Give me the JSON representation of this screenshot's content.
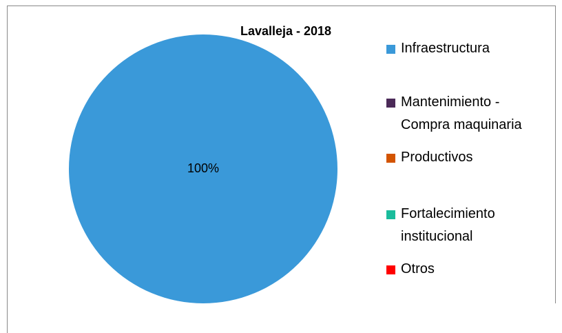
{
  "chart_data": {
    "type": "pie",
    "title": "Lavalleja - 2018",
    "categories": [
      "Infraestructura",
      "Mantenimiento - Compra maquinaria",
      "Productivos",
      "Fortalecimiento institucional",
      "Otros"
    ],
    "values": [
      100,
      0,
      0,
      0,
      0
    ],
    "value_labels": [
      "100%",
      null,
      null,
      null,
      null
    ],
    "colors": [
      "#3a99d9",
      "#4b2a58",
      "#d35400",
      "#1abc9c",
      "#ff0000"
    ],
    "legend": "right"
  }
}
